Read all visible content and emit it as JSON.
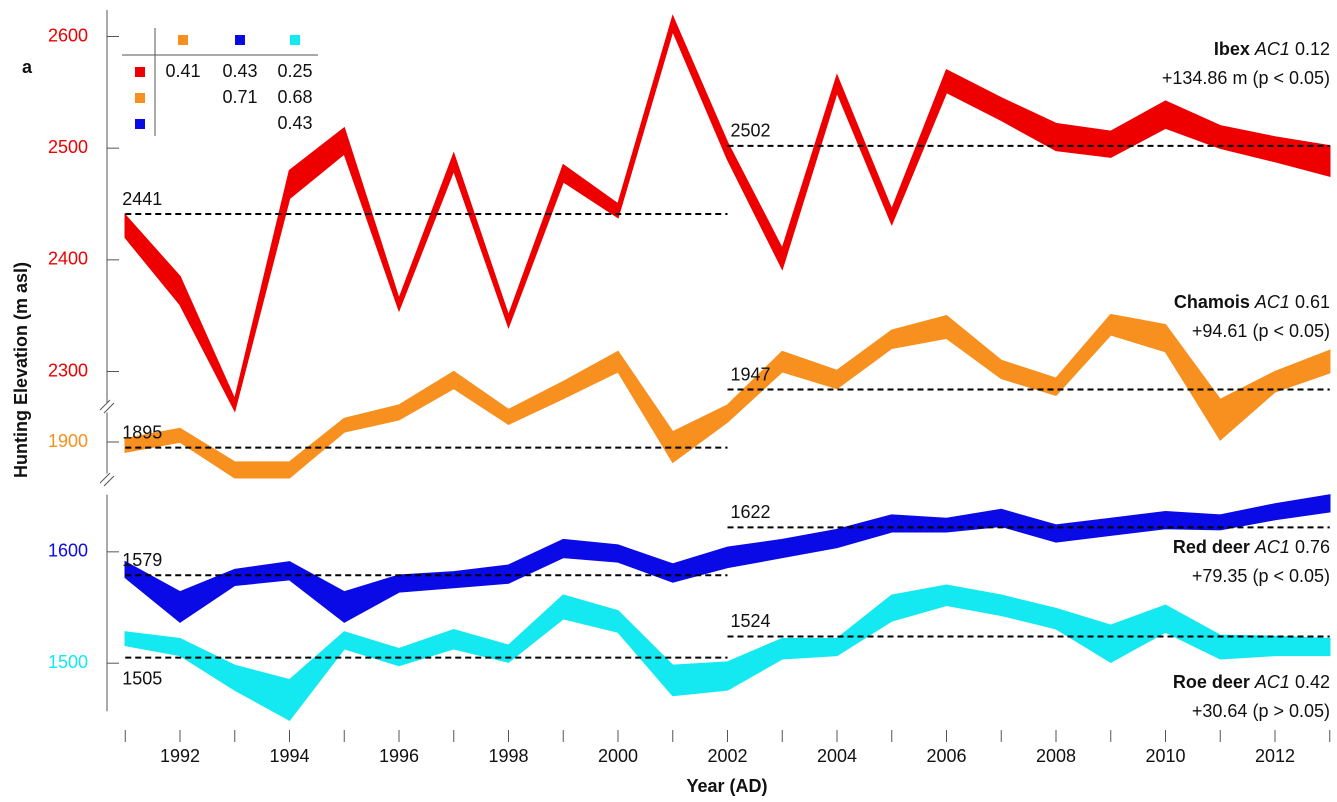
{
  "chart_data": {
    "type": "band",
    "panel_label": "a",
    "y_label": "Hunting Elevation (m asl)",
    "x_label": "Year (AD)",
    "x": [
      1991,
      1992,
      1993,
      1994,
      1995,
      1996,
      1997,
      1998,
      1999,
      2000,
      2001,
      2002,
      2003,
      2004,
      2005,
      2006,
      2007,
      2008,
      2009,
      2010,
      2011,
      2012,
      2013
    ],
    "xlim": [
      1991,
      2013
    ],
    "xticks": [
      1992,
      1994,
      1996,
      1998,
      2000,
      2002,
      2004,
      2006,
      2008,
      2010,
      2012
    ],
    "xminor_ticks": [
      1991,
      1993,
      1995,
      1997,
      1999,
      2001,
      2003,
      2005,
      2007,
      2009,
      2011,
      2013
    ],
    "mean_periods": [
      [
        1991,
        2002
      ],
      [
        2002,
        2013
      ]
    ],
    "y_segments": [
      {
        "ylim": [
          2270,
          2630
        ],
        "yticks": [
          2300,
          2400,
          2500,
          2600
        ],
        "tick_colors": [
          "#ee0000",
          "#ee0000",
          "#ee0000",
          "#ee0000"
        ]
      },
      {
        "ylim": [
          1870,
          1930
        ],
        "yticks": [
          1900
        ],
        "tick_colors": [
          "#f7901e"
        ]
      },
      {
        "ylim": [
          1455,
          1655
        ],
        "yticks": [
          1500,
          1600
        ],
        "tick_colors": [
          "#14e8f0",
          "#0a0ae6"
        ]
      }
    ],
    "series": [
      {
        "name": "Ibex",
        "color": "#ee0000",
        "segment": 0,
        "high": [
          2440,
          2385,
          2275,
          2480,
          2518,
          2365,
          2495,
          2350,
          2485,
          2450,
          2618,
          2505,
          2410,
          2565,
          2445,
          2570,
          2545,
          2522,
          2515,
          2542,
          2520,
          2510,
          2502
        ],
        "low": [
          2420,
          2360,
          2265,
          2455,
          2495,
          2355,
          2480,
          2340,
          2470,
          2438,
          2605,
          2490,
          2392,
          2550,
          2432,
          2550,
          2525,
          2498,
          2492,
          2518,
          2500,
          2488,
          2475
        ],
        "means": [
          2441,
          2502
        ],
        "ac1_label": "AC1",
        "ac1": 0.12,
        "trend": "+134.86 m",
        "significance": "(p < 0.05)"
      },
      {
        "name": "Chamois",
        "color": "#f7901e",
        "segment": 1,
        "high": [
          1903,
          1912,
          1882,
          1882,
          1921,
          1933,
          1963,
          1929,
          1954,
          1981,
          1909,
          1933,
          1981,
          1964,
          2000,
          2013,
          1973,
          1957,
          2014,
          2005,
          1938,
          1963,
          1982
        ],
        "low": [
          1891,
          1900,
          1868,
          1868,
          1909,
          1920,
          1948,
          1916,
          1939,
          1963,
          1882,
          1918,
          1963,
          1948,
          1984,
          1993,
          1957,
          1942,
          1996,
          1981,
          1902,
          1945,
          1962
        ],
        "means": [
          1895,
          1947
        ],
        "ac1_label": "AC1",
        "ac1": 0.61,
        "trend": "+94.61",
        "significance": "(p < 0.05)"
      },
      {
        "name": "Red deer",
        "color": "#0a0ae6",
        "segment": 2,
        "high": [
          1591,
          1564,
          1584,
          1591,
          1564,
          1579,
          1582,
          1588,
          1611,
          1606,
          1589,
          1604,
          1611,
          1620,
          1633,
          1630,
          1638,
          1624,
          1630,
          1636,
          1633,
          1643,
          1651
        ],
        "low": [
          1577,
          1537,
          1570,
          1575,
          1537,
          1564,
          1568,
          1572,
          1595,
          1591,
          1573,
          1586,
          1595,
          1604,
          1618,
          1618,
          1623,
          1609,
          1615,
          1621,
          1620,
          1629,
          1636
        ],
        "means": [
          1579,
          1622
        ],
        "ac1_label": "AC1",
        "ac1": 0.76,
        "trend": "+79.35",
        "significance": "(p < 0.05)"
      },
      {
        "name": "Roe deer",
        "color": "#14e8f0",
        "segment": 2,
        "high": [
          1528,
          1522,
          1498,
          1485,
          1528,
          1513,
          1530,
          1516,
          1561,
          1547,
          1498,
          1501,
          1522,
          1522,
          1561,
          1570,
          1561,
          1549,
          1534,
          1552,
          1525,
          1524,
          1522
        ],
        "low": [
          1516,
          1507,
          1476,
          1449,
          1513,
          1498,
          1513,
          1501,
          1540,
          1528,
          1471,
          1476,
          1504,
          1507,
          1538,
          1552,
          1543,
          1531,
          1501,
          1528,
          1504,
          1507,
          1507
        ],
        "means": [
          1505,
          1524
        ],
        "ac1_label": "AC1",
        "ac1": 0.42,
        "trend": "+30.64",
        "significance": "(p > 0.05)"
      }
    ],
    "correlation": {
      "columns": [
        "#f7901e",
        "#0a0ae6",
        "#14e8f0"
      ],
      "rows": [
        "#ee0000",
        "#f7901e",
        "#0a0ae6"
      ],
      "values": [
        [
          0.41,
          0.43,
          0.25
        ],
        [
          null,
          0.71,
          0.68
        ],
        [
          null,
          null,
          0.43
        ]
      ]
    }
  }
}
